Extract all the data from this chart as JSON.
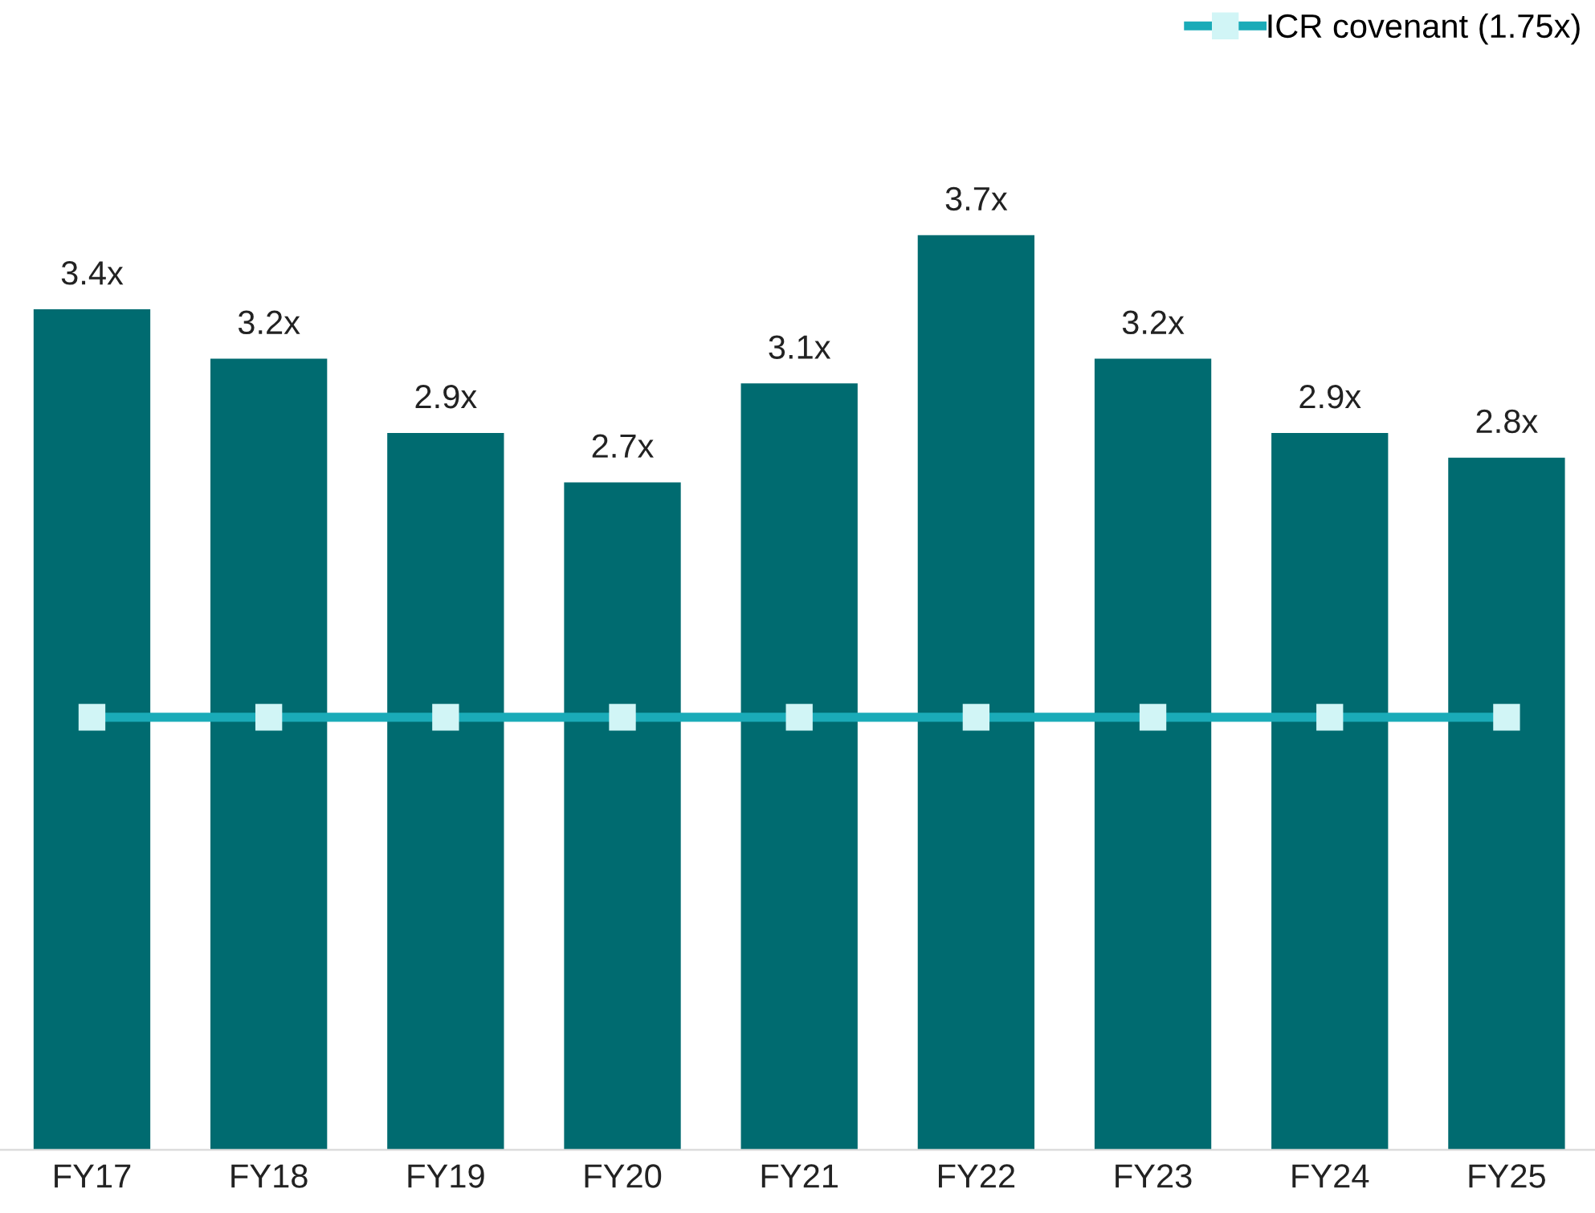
{
  "chart_data": {
    "type": "bar",
    "categories": [
      "FY17",
      "FY18",
      "FY19",
      "FY20",
      "FY21",
      "FY22",
      "FY23",
      "FY24",
      "FY25"
    ],
    "series": [
      {
        "color": "#006b70",
        "values": [
          3.4,
          3.2,
          2.9,
          2.7,
          3.1,
          3.7,
          3.2,
          2.9,
          2.8
        ],
        "value_labels": [
          "3.4x",
          "3.2x",
          "2.9x",
          "2.7x",
          "3.1x",
          "3.7x",
          "3.2x",
          "2.9x",
          "2.8x"
        ]
      },
      {
        "type": "line",
        "name": "ICR covenant (1.75x)",
        "color": "#1aabb8",
        "marker": "square",
        "line_style": "solid",
        "values": [
          1.75,
          1.75,
          1.75,
          1.75,
          1.75,
          1.75,
          1.75,
          1.75,
          1.75
        ]
      }
    ],
    "tick_labels": "x",
    "grid": false,
    "legend": "top right"
  }
}
